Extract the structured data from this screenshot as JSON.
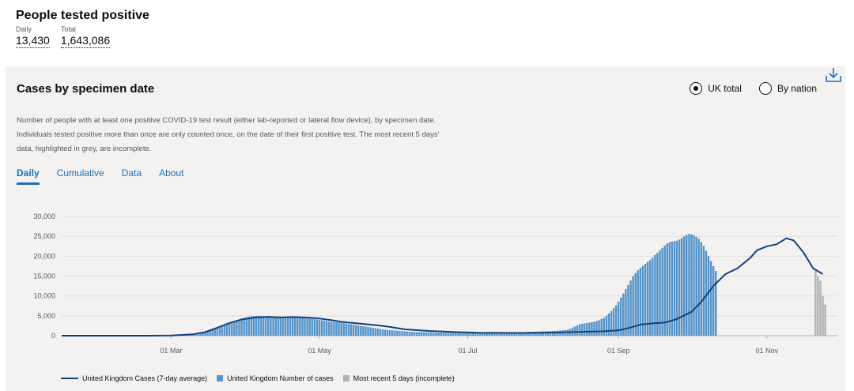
{
  "headline": {
    "title": "People tested positive",
    "daily_label": "Daily",
    "daily_value": "13,430",
    "total_label": "Total",
    "total_value": "1,643,086"
  },
  "card": {
    "title": "Cases by specimen date",
    "radio_uk": "UK total",
    "radio_nation": "By nation",
    "selected": "UK total",
    "description": "Number of people with at least one positive COVID-19 test result (either lab-reported or lateral flow device), by specimen date. Individuals tested positive more than once are only counted once, on the date of their first positive test. The most recent 5 days' data, highlighted in grey, are incomplete.",
    "tabs": [
      "Daily",
      "Cumulative",
      "Data",
      "About"
    ],
    "active_tab": "Daily"
  },
  "colors": {
    "bar": "#5694ca",
    "avg_line": "#12407f",
    "incomplete": "#b1b4b6",
    "link": "#1d70b8"
  },
  "chart_data": {
    "type": "bar",
    "ylim": [
      0,
      32000
    ],
    "y_ticks": [
      0,
      5000,
      10000,
      15000,
      20000,
      25000,
      30000
    ],
    "y_tick_labels": [
      "0",
      "5,000",
      "10,000",
      "15,000",
      "20,000",
      "25,000",
      "30,000"
    ],
    "x_tick_labels": [
      "01 Mar",
      "01 May",
      "01 Jul",
      "01 Sep",
      "01 Nov"
    ],
    "x_tick_dates": [
      "2020-03-01",
      "2020-05-01",
      "2020-07-01",
      "2020-09-01",
      "2020-11-01"
    ],
    "x_range": [
      "2020-01-16",
      "2020-11-30"
    ],
    "grid": true,
    "legend_position": "bottom",
    "series": [
      {
        "name": "United Kingdom Cases (7-day average)",
        "type": "line",
        "points": [
          [
            "2020-01-16",
            0
          ],
          [
            "2020-02-20",
            0
          ],
          [
            "2020-03-01",
            40
          ],
          [
            "2020-03-10",
            350
          ],
          [
            "2020-03-15",
            900
          ],
          [
            "2020-03-20",
            2000
          ],
          [
            "2020-03-25",
            3200
          ],
          [
            "2020-03-30",
            4100
          ],
          [
            "2020-04-05",
            4600
          ],
          [
            "2020-04-10",
            4750
          ],
          [
            "2020-04-15",
            4600
          ],
          [
            "2020-04-20",
            4700
          ],
          [
            "2020-04-25",
            4600
          ],
          [
            "2020-04-30",
            4400
          ],
          [
            "2020-05-05",
            4000
          ],
          [
            "2020-05-10",
            3500
          ],
          [
            "2020-05-15",
            3200
          ],
          [
            "2020-05-20",
            2900
          ],
          [
            "2020-05-25",
            2600
          ],
          [
            "2020-05-30",
            2200
          ],
          [
            "2020-06-05",
            1600
          ],
          [
            "2020-06-15",
            1200
          ],
          [
            "2020-06-25",
            950
          ],
          [
            "2020-07-05",
            750
          ],
          [
            "2020-07-20",
            700
          ],
          [
            "2020-08-01",
            750
          ],
          [
            "2020-08-15",
            950
          ],
          [
            "2020-08-25",
            1100
          ],
          [
            "2020-09-01",
            1350
          ],
          [
            "2020-09-05",
            1900
          ],
          [
            "2020-09-10",
            2800
          ],
          [
            "2020-09-15",
            3100
          ],
          [
            "2020-09-20",
            3300
          ],
          [
            "2020-09-25",
            4200
          ],
          [
            "2020-10-01",
            6000
          ],
          [
            "2020-10-05",
            8500
          ],
          [
            "2020-10-10",
            12500
          ],
          [
            "2020-10-15",
            15500
          ],
          [
            "2020-10-20",
            17000
          ],
          [
            "2020-10-25",
            19500
          ],
          [
            "2020-10-28",
            21500
          ],
          [
            "2020-11-01",
            22500
          ],
          [
            "2020-11-05",
            23000
          ],
          [
            "2020-11-09",
            24500
          ],
          [
            "2020-11-12",
            24000
          ],
          [
            "2020-11-16",
            21000
          ],
          [
            "2020-11-20",
            17000
          ],
          [
            "2020-11-24",
            15500
          ]
        ]
      },
      {
        "name": "United Kingdom Number of cases",
        "type": "bar",
        "start_date": "2020-01-30",
        "values": [
          0,
          0,
          0,
          0,
          0,
          0,
          0,
          0,
          0,
          0,
          0,
          0,
          0,
          0,
          0,
          0,
          0,
          0,
          0,
          0,
          0,
          0,
          0,
          0,
          0,
          0,
          0,
          0,
          0,
          0,
          0,
          0,
          40,
          60,
          80,
          110,
          150,
          190,
          250,
          320,
          400,
          480,
          600,
          700,
          800,
          940,
          1080,
          1250,
          1430,
          1620,
          1830,
          2050,
          2300,
          2550,
          2820,
          3100,
          3400,
          3650,
          3900,
          4100,
          4350,
          4500,
          4650,
          4800,
          4900,
          4950,
          5000,
          5000,
          4950,
          4900,
          4850,
          4800,
          4750,
          4700,
          4700,
          4700,
          4700,
          4700,
          4700,
          4700,
          4700,
          4650,
          4600,
          4550,
          4500,
          4450,
          4400,
          4350,
          4300,
          4250,
          4200,
          4100,
          4000,
          3900,
          3800,
          3700,
          3600,
          3500,
          3450,
          3400,
          3350,
          3300,
          3200,
          3100,
          3000,
          2900,
          2800,
          2700,
          2600,
          2500,
          2400,
          2300,
          2200,
          2100,
          2000,
          1900,
          1800,
          1700,
          1600,
          1500,
          1450,
          1400,
          1350,
          1300,
          1250,
          1200,
          1150,
          1100,
          1050,
          1000,
          980,
          960,
          940,
          920,
          900,
          880,
          860,
          840,
          820,
          800,
          790,
          780,
          770,
          760,
          750,
          740,
          730,
          720,
          710,
          700,
          700,
          700,
          700,
          700,
          700,
          700,
          700,
          700,
          700,
          700,
          700,
          700,
          700,
          700,
          700,
          700,
          700,
          750,
          750,
          750,
          800,
          800,
          800,
          850,
          850,
          850,
          900,
          900,
          950,
          950,
          1000,
          1000,
          1050,
          1050,
          1100,
          1100,
          1150,
          1150,
          1200,
          1200,
          1250,
          1300,
          1350,
          1400,
          1500,
          1700,
          2000,
          2300,
          2600,
          2900,
          3000,
          3100,
          3200,
          3300,
          3400,
          3500,
          3700,
          3900,
          4200,
          4500,
          5000,
          5600,
          6200,
          6900,
          7700,
          8600,
          9600,
          10600,
          11700,
          12800,
          13900,
          15000,
          15800,
          16500,
          17100,
          17600,
          18100,
          18600,
          19100,
          19700,
          20300,
          20900,
          21500,
          22100,
          22700,
          23200,
          23500,
          23700,
          23800,
          23900,
          24200,
          24600,
          25000,
          25400,
          25600,
          25500,
          25300,
          24900,
          24400,
          23600,
          22600,
          21400,
          20100,
          18800,
          17500,
          16300
        ]
      },
      {
        "name": "Most recent 5 days (incomplete)",
        "type": "bar",
        "start_date": "2020-11-21",
        "values": [
          16500,
          15000,
          13800,
          10000,
          7800
        ]
      }
    ]
  }
}
